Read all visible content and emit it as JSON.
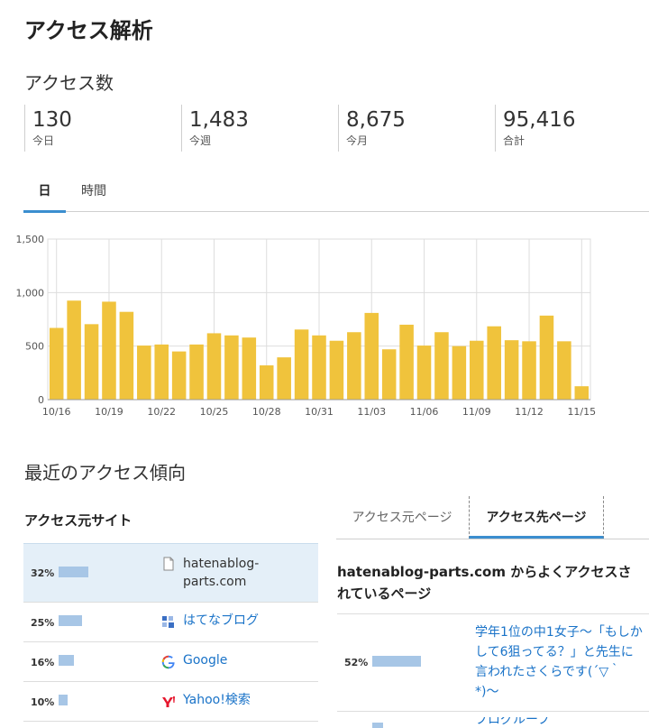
{
  "page": {
    "title": "アクセス解析"
  },
  "access_count": {
    "title": "アクセス数",
    "stats": [
      {
        "value": "130",
        "label": "今日"
      },
      {
        "value": "1,483",
        "label": "今週"
      },
      {
        "value": "8,675",
        "label": "今月"
      },
      {
        "value": "95,416",
        "label": "合計"
      }
    ]
  },
  "tabs": {
    "day": "日",
    "hour": "時間",
    "active": "日"
  },
  "chart_data": {
    "type": "bar",
    "title": "",
    "xlabel": "",
    "ylabel": "",
    "ylim": [
      0,
      1500
    ],
    "yticks": [
      0,
      500,
      1000,
      1500
    ],
    "ytick_labels": [
      "0",
      "500",
      "1,000",
      "1,500"
    ],
    "categories": [
      "10/16",
      "10/17",
      "10/18",
      "10/19",
      "10/20",
      "10/21",
      "10/22",
      "10/23",
      "10/24",
      "10/25",
      "10/26",
      "10/27",
      "10/28",
      "10/29",
      "10/30",
      "10/31",
      "11/01",
      "11/02",
      "11/03",
      "11/04",
      "11/05",
      "11/06",
      "11/07",
      "11/08",
      "11/09",
      "11/10",
      "11/11",
      "11/12",
      "11/13",
      "11/14",
      "11/15"
    ],
    "xtick_labels": [
      "10/16",
      "10/19",
      "10/22",
      "10/25",
      "10/28",
      "10/31",
      "11/03",
      "11/06",
      "11/09",
      "11/12",
      "11/15"
    ],
    "values": [
      670,
      925,
      705,
      915,
      820,
      505,
      515,
      450,
      515,
      620,
      600,
      580,
      320,
      395,
      655,
      600,
      550,
      630,
      810,
      470,
      700,
      505,
      630,
      500,
      550,
      685,
      555,
      545,
      785,
      545,
      125
    ],
    "grid": true,
    "bar_color": "#f0c33c"
  },
  "trends": {
    "title": "最近のアクセス傾向",
    "sources_title": "アクセス元サイト",
    "sources": [
      {
        "pct": "32%",
        "share": 32,
        "site": "hatenablog-parts.com",
        "icon": "page-icon"
      },
      {
        "pct": "25%",
        "share": 25,
        "site": "はてなブログ",
        "icon": "hatena-icon"
      },
      {
        "pct": "16%",
        "share": 16,
        "site": "Google",
        "icon": "google-icon"
      },
      {
        "pct": "10%",
        "share": 10,
        "site": "Yahoo!検索",
        "icon": "yahoo-icon"
      }
    ],
    "right_tabs": {
      "source_page": "アクセス元ページ",
      "dest_page": "アクセス先ページ",
      "active": "アクセス先ページ"
    },
    "dest_heading": "hatenablog-parts.com からよくアクセスされているページ",
    "dest_pages": [
      {
        "pct": "52%",
        "share": 52,
        "title": "学年1位の中1女子〜「もしかして6狙ってる？」と先生に言われたさくらです(´▽｀*)〜"
      },
      {
        "title": "ブログループ"
      }
    ],
    "colors": {
      "accent": "#3b8ecf",
      "bar": "#a7c6e6",
      "highlight_row": "#e4eff8",
      "link": "#1a73c8"
    }
  }
}
